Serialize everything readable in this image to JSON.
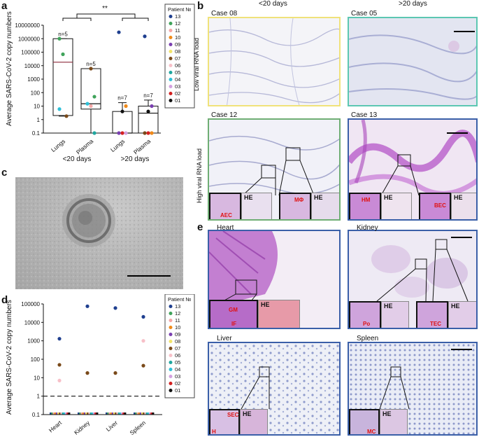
{
  "panel_labels": {
    "a": "a",
    "b": "b",
    "c": "c",
    "d": "d",
    "e": "e"
  },
  "colors": {
    "yellow_border": "#f0e27a",
    "teal_border": "#5cc7b2",
    "green_border": "#6fae74",
    "blue_border": "#3a5fa8",
    "arrow_red": "#e01010"
  },
  "patients": [
    {
      "id": "13",
      "color": "#1f3f8f"
    },
    {
      "id": "12",
      "color": "#3fa35a"
    },
    {
      "id": "11",
      "color": "#f4a6a6"
    },
    {
      "id": "10",
      "color": "#f08a1a"
    },
    {
      "id": "09",
      "color": "#7a3fb0"
    },
    {
      "id": "08",
      "color": "#f2e46a"
    },
    {
      "id": "07",
      "color": "#7a4a1a"
    },
    {
      "id": "06",
      "color": "#f7c0c8"
    },
    {
      "id": "05",
      "color": "#1fa7a0"
    },
    {
      "id": "04",
      "color": "#2fc0d8"
    },
    {
      "id": "03",
      "color": "#d3a0e0"
    },
    {
      "id": "02",
      "color": "#d32020"
    },
    {
      "id": "01",
      "color": "#111111"
    }
  ],
  "chart_data": [
    {
      "panel": "a",
      "type": "box",
      "ylabel": "Average SARS-CoV-2 copy numbers",
      "log_scale": true,
      "ylim": [
        0.1,
        10000000
      ],
      "yticks": [
        "0.1",
        "1",
        "10",
        "100",
        "1000",
        "10000",
        "100000",
        "1000000",
        "10000000"
      ],
      "categories": [
        "Lungs",
        "Plasma",
        "Lungs",
        "Plasma"
      ],
      "groups": [
        "<20 days",
        ">20 days"
      ],
      "significance": "**",
      "n_labels": [
        "n=5",
        "n=5",
        "n=7",
        "n=7"
      ],
      "legend_title": "Patient №",
      "boxes": [
        {
          "min": 1.8,
          "q1": 2,
          "median": 18000,
          "q3": 1000000,
          "max": 1000000
        },
        {
          "min": 0.1,
          "q1": 6,
          "median": 15,
          "q3": 6000,
          "max": 6000
        },
        {
          "min": 0.1,
          "q1": 0.1,
          "median": 0.1,
          "q3": 4,
          "max": 18
        },
        {
          "min": 0.1,
          "q1": 0.1,
          "median": 3,
          "q3": 10,
          "max": 28
        }
      ],
      "points": [
        {
          "cat": 0,
          "patient": "12",
          "y": 1000000
        },
        {
          "cat": 0,
          "patient": "12",
          "y": 70000
        },
        {
          "cat": 0,
          "patient": "07",
          "y": 1.8
        },
        {
          "cat": 0,
          "patient": "04",
          "y": 6
        },
        {
          "cat": 1,
          "patient": "07",
          "y": 6000
        },
        {
          "cat": 1,
          "patient": "12",
          "y": 50
        },
        {
          "cat": 1,
          "patient": "04",
          "y": 15
        },
        {
          "cat": 1,
          "patient": "11",
          "y": 10
        },
        {
          "cat": 1,
          "patient": "05",
          "y": 0.1
        },
        {
          "cat": 2,
          "patient": "13",
          "y": 3000000
        },
        {
          "cat": 2,
          "patient": "01",
          "y": 4
        },
        {
          "cat": 2,
          "patient": "10",
          "y": 10
        },
        {
          "cat": 2,
          "patient": "09",
          "y": 0.1
        },
        {
          "cat": 2,
          "patient": "02",
          "y": 0.1
        },
        {
          "cat": 2,
          "patient": "03",
          "y": 0.1
        },
        {
          "cat": 3,
          "patient": "13",
          "y": 1500000
        },
        {
          "cat": 3,
          "patient": "01",
          "y": 4
        },
        {
          "cat": 3,
          "patient": "09",
          "y": 10
        },
        {
          "cat": 3,
          "patient": "07",
          "y": 0.1
        },
        {
          "cat": 3,
          "patient": "02",
          "y": 0.1
        },
        {
          "cat": 3,
          "patient": "10",
          "y": 0.1
        }
      ]
    },
    {
      "panel": "d",
      "type": "scatter",
      "ylabel": "Average SARS-CoV-2 copy numbers",
      "log_scale": true,
      "ylim": [
        0.1,
        100000
      ],
      "yticks": [
        "0.1",
        "1",
        "10",
        "100",
        "1000",
        "10000",
        "100000"
      ],
      "categories": [
        "Heart",
        "Kidney",
        "Liver",
        "Spleen"
      ],
      "threshold": 1,
      "legend_title": "Patient №",
      "points": [
        {
          "cat": 0,
          "patient": "13",
          "y": 1300
        },
        {
          "cat": 0,
          "patient": "07",
          "y": 50
        },
        {
          "cat": 0,
          "patient": "06",
          "y": 7
        },
        {
          "cat": 1,
          "patient": "13",
          "y": 75000
        },
        {
          "cat": 1,
          "patient": "07",
          "y": 18
        },
        {
          "cat": 2,
          "patient": "13",
          "y": 60000
        },
        {
          "cat": 2,
          "patient": "07",
          "y": 18
        },
        {
          "cat": 3,
          "patient": "13",
          "y": 20000
        },
        {
          "cat": 3,
          "patient": "06",
          "y": 1000
        },
        {
          "cat": 3,
          "patient": "07",
          "y": 45
        }
      ]
    }
  ],
  "panel_b": {
    "col_headers": [
      "<20 days",
      ">20 days"
    ],
    "row_labels": [
      "Low viral RNA load",
      "High viral RNA load"
    ],
    "cases": [
      "Case 08",
      "Case 05",
      "Case 12",
      "Case 13"
    ],
    "he_label": "HE",
    "arrows": [
      "AEC",
      "MΦ",
      "HM",
      "BEC"
    ]
  },
  "panel_e": {
    "organs": [
      "Heart",
      "Kidney",
      "Liver",
      "Spleen"
    ],
    "he_label": "HE",
    "arrows": [
      "GM",
      "IF",
      "Po",
      "TEC",
      "SEC",
      "H",
      "MC"
    ]
  }
}
